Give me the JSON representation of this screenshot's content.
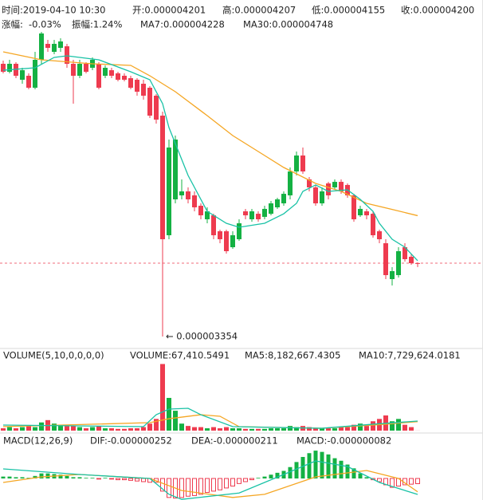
{
  "chart_data": {
    "type": "candlestick",
    "colors": {
      "up": "#14b143",
      "down": "#ee3b4f",
      "ma_fast": "#19c2a6",
      "ma_slow": "#f5a623",
      "macd": "#d83ad1"
    },
    "header": {
      "time": "时间:2019-04-10 10:30",
      "open": "开:0.000004201",
      "high": "高:0.000004207",
      "low": "低:0.000004155",
      "close": "收:0.000004200",
      "change_label": "涨幅:",
      "change": "-0.03%",
      "amplitude": "振幅:1.24%",
      "ma7": "MA7:0.000004228",
      "ma30": "MA30:0.000004748"
    },
    "price": {
      "ylim": [
        3.234e-06,
        6.868e-06
      ],
      "annotation": "← 0.000003354",
      "open": [
        6.5e-06,
        6.408e-06,
        6.5e-06,
        6.316e-06,
        6.362e-06,
        6.224e-06,
        6.546e-06,
        6.73e-06,
        6.638e-06,
        6.684e-06,
        6.702e-06,
        6.5e-06,
        6.362e-06,
        6.5e-06,
        6.454e-06,
        6.5e-06,
        6.362e-06,
        6.426e-06,
        6.39e-06,
        6.362e-06,
        6.334e-06,
        6.316e-06,
        6.27e-06,
        6.224e-06,
        6.132e-06,
        5.902e-06,
        4.522e-06,
        4.936e-06,
        4.982e-06,
        5.028e-06,
        4.982e-06,
        4.862e-06,
        4.706e-06,
        4.752e-06,
        4.568e-06,
        4.568e-06,
        4.384e-06,
        4.476e-06,
        4.798e-06,
        4.706e-06,
        4.77e-06,
        4.734e-06,
        4.77e-06,
        4.844e-06,
        4.89e-06,
        4.982e-06,
        5.258e-06,
        5.442e-06,
        5.166e-06,
        5.074e-06,
        4.89e-06,
        5.12e-06,
        5.074e-06,
        5.138e-06,
        5.102e-06,
        4.982e-06,
        4.752e-06,
        4.798e-06,
        4.77e-06,
        4.568e-06,
        4.43e-06,
        4.016e-06,
        4.062e-06,
        4.384e-06,
        4.274e-06,
        4.201e-06
      ],
      "high": [
        6.537e-06,
        6.546e-06,
        6.518e-06,
        6.454e-06,
        6.39e-06,
        6.638e-06,
        6.868e-06,
        6.776e-06,
        6.776e-06,
        6.794e-06,
        6.73e-06,
        6.546e-06,
        6.546e-06,
        6.518e-06,
        6.574e-06,
        6.518e-06,
        6.482e-06,
        6.454e-06,
        6.408e-06,
        6.39e-06,
        6.362e-06,
        6.334e-06,
        6.316e-06,
        6.242e-06,
        6.15e-06,
        5.948e-06,
        5.626e-06,
        5.672e-06,
        5.166e-06,
        5.074e-06,
        5.028e-06,
        4.89e-06,
        4.844e-06,
        4.77e-06,
        4.586e-06,
        4.586e-06,
        4.568e-06,
        4.706e-06,
        4.826e-06,
        4.826e-06,
        4.798e-06,
        4.862e-06,
        4.918e-06,
        4.954e-06,
        5.028e-06,
        5.304e-06,
        5.488e-06,
        5.534e-06,
        5.194e-06,
        5.102e-06,
        5.074e-06,
        5.138e-06,
        5.166e-06,
        5.166e-06,
        5.12e-06,
        5e-06,
        4.862e-06,
        4.826e-06,
        4.798e-06,
        4.586e-06,
        4.476e-06,
        4.154e-06,
        4.384e-06,
        4.43e-06,
        4.31e-06,
        4.207e-06
      ],
      "low": [
        6.39e-06,
        6.39e-06,
        6.334e-06,
        6.27e-06,
        6.206e-06,
        6.206e-06,
        6.5e-06,
        6.638e-06,
        6.61e-06,
        6.638e-06,
        6.454e-06,
        6.04e-06,
        6.334e-06,
        6.39e-06,
        6.426e-06,
        6.206e-06,
        6.334e-06,
        6.334e-06,
        6.298e-06,
        6.298e-06,
        6.206e-06,
        6.132e-06,
        6.086e-06,
        5.874e-06,
        5.81e-06,
        3.354e-06,
        4.476e-06,
        4.89e-06,
        4.936e-06,
        4.89e-06,
        4.798e-06,
        4.706e-06,
        4.66e-06,
        4.476e-06,
        4.43e-06,
        4.31e-06,
        4.366e-06,
        4.458e-06,
        4.706e-06,
        4.678e-06,
        4.678e-06,
        4.706e-06,
        4.752e-06,
        4.826e-06,
        4.862e-06,
        4.936e-06,
        5.212e-06,
        5.23e-06,
        5.028e-06,
        4.862e-06,
        4.862e-06,
        4.936e-06,
        5.046e-06,
        5e-06,
        4.954e-06,
        4.678e-06,
        4.734e-06,
        4.706e-06,
        4.494e-06,
        4.43e-06,
        4.016e-06,
        3.942e-06,
        4.034e-06,
        4.218e-06,
        4.182e-06,
        4.155e-06
      ],
      "close": [
        6.408e-06,
        6.5e-06,
        6.362e-06,
        6.426e-06,
        6.224e-06,
        6.546e-06,
        6.85e-06,
        6.684e-06,
        6.73e-06,
        6.758e-06,
        6.5e-06,
        6.362e-06,
        6.5e-06,
        6.408e-06,
        6.546e-06,
        6.224e-06,
        6.454e-06,
        6.362e-06,
        6.316e-06,
        6.316e-06,
        6.224e-06,
        6.178e-06,
        6.132e-06,
        5.902e-06,
        5.856e-06,
        4.476e-06,
        5.534e-06,
        5.626e-06,
        5.028e-06,
        4.936e-06,
        4.844e-06,
        4.752e-06,
        4.798e-06,
        4.522e-06,
        4.476e-06,
        4.338e-06,
        4.522e-06,
        4.66e-06,
        4.752e-06,
        4.798e-06,
        4.706e-06,
        4.826e-06,
        4.89e-06,
        4.936e-06,
        5e-06,
        5.258e-06,
        5.442e-06,
        5.258e-06,
        5.074e-06,
        4.89e-06,
        5.028e-06,
        4.982e-06,
        5.138e-06,
        5.028e-06,
        4.982e-06,
        4.706e-06,
        4.826e-06,
        4.752e-06,
        4.522e-06,
        4.476e-06,
        4.062e-06,
        4.108e-06,
        4.338e-06,
        4.246e-06,
        4.2e-06,
        4.2e-06
      ],
      "ma7": {
        "x": [
          0,
          5,
          8,
          10,
          15,
          20,
          23,
          25,
          26,
          27,
          29,
          32,
          35,
          37,
          41,
          44,
          46,
          47,
          49,
          51,
          54,
          56,
          58,
          59,
          61,
          63,
          65
        ],
        "values": [
          6.426e-06,
          6.454e-06,
          6.574e-06,
          6.592e-06,
          6.546e-06,
          6.408e-06,
          6.316e-06,
          6.04e-06,
          5.764e-06,
          5.58e-06,
          5.212e-06,
          4.798e-06,
          4.66e-06,
          4.614e-06,
          4.66e-06,
          4.77e-06,
          4.89e-06,
          5.028e-06,
          5.102e-06,
          5.028e-06,
          5.046e-06,
          4.936e-06,
          4.798e-06,
          4.66e-06,
          4.476e-06,
          4.384e-06,
          4.228e-06
        ]
      },
      "ma30": {
        "x": [
          0,
          6,
          14,
          20,
          23,
          27,
          32,
          36,
          41,
          44,
          49,
          53,
          57,
          61,
          65
        ],
        "values": [
          6.638e-06,
          6.546e-06,
          6.5e-06,
          6.482e-06,
          6.362e-06,
          6.178e-06,
          5.902e-06,
          5.672e-06,
          5.442e-06,
          5.304e-06,
          5.12e-06,
          5.028e-06,
          4.89e-06,
          4.82e-06,
          4.748e-06
        ]
      }
    },
    "volume": {
      "title": "VOLUME(5,10,0,0,0,0)",
      "current": "VOLUME:67,410.5491",
      "ma5_label": "MA5:8,182,667.4305",
      "ma10_label": "MA10:7,729,624.0181",
      "ylim": [
        0,
        58000000
      ],
      "values": [
        2000000,
        3000000,
        2000000,
        3000000,
        4000000,
        3000000,
        7000000,
        9000000,
        6000000,
        5000000,
        4000000,
        4000000,
        3000000,
        2000000,
        3000000,
        4000000,
        2000000,
        2000000,
        1500000,
        1500000,
        2000000,
        2000000,
        3000000,
        6000000,
        10000000,
        57000000,
        28000000,
        17000000,
        6000000,
        4000000,
        3000000,
        3000000,
        2000000,
        3000000,
        2000000,
        3000000,
        2000000,
        2000000,
        1500000,
        1500000,
        1500000,
        1500000,
        2000000,
        2000000,
        2000000,
        4000000,
        3000000,
        4000000,
        3000000,
        2000000,
        2000000,
        2000000,
        2000000,
        3000000,
        3000000,
        5000000,
        6000000,
        4000000,
        8000000,
        10000000,
        13000000,
        8000000,
        10000000,
        5000000,
        3000000,
        67410.5491
      ],
      "ma5": {
        "x": [
          0,
          22,
          24,
          26,
          29,
          31,
          36,
          50,
          58,
          65
        ],
        "values": [
          4800000,
          3400000,
          13600000,
          18400000,
          19100000,
          13600000,
          3400000,
          2000000,
          5500000,
          8182667.4305
        ]
      },
      "ma10": {
        "x": [
          0,
          23,
          26,
          31,
          34,
          37,
          50,
          60,
          65
        ],
        "values": [
          3400000,
          6800000,
          10200000,
          13600000,
          12300000,
          3400000,
          2000000,
          5500000,
          7729624.0181
        ]
      }
    },
    "macd": {
      "title": "MACD(12,26,9)",
      "dif_label": "DIF:-0.000000252",
      "dea_label": "DEA:-0.000000211",
      "macd_label": "MACD:-0.000000082",
      "ylim": [
        -3.4e-07,
        5.04e-07
      ],
      "values": [
        3e-08,
        3e-08,
        2e-08,
        2e-08,
        1e-08,
        4e-08,
        8e-08,
        8e-08,
        7e-08,
        6e-08,
        4e-08,
        2e-08,
        2e-08,
        1e-08,
        1e-08,
        -1e-08,
        1e-08,
        -1e-08,
        -2e-08,
        -2e-08,
        -3e-08,
        -4e-08,
        -5e-08,
        -6e-08,
        -6e-08,
        -2e-07,
        -3e-07,
        -3.1e-07,
        -3e-07,
        -2.8e-07,
        -2.7e-07,
        -2.5e-07,
        -2.2e-07,
        -2e-07,
        -1.8e-07,
        -1.5e-07,
        -1.2e-07,
        -8e-08,
        -5e-08,
        -2e-08,
        1e-08,
        3e-08,
        6e-08,
        9e-08,
        1.2e-07,
        1.8e-07,
        2.6e-07,
        3.4e-07,
        4e-07,
        4.4e-07,
        4.2e-07,
        3.8e-07,
        3.2e-07,
        2.8e-07,
        2.2e-07,
        1.6e-07,
        8e-08,
        2e-08,
        -2e-08,
        -5e-08,
        -1e-07,
        -1.4e-07,
        -1.2e-07,
        -1e-07,
        -9e-08,
        -8.2e-08
      ],
      "dif": {
        "x": [
          0,
          12,
          23,
          26,
          28,
          37,
          44,
          49,
          54,
          59,
          65
        ],
        "values": [
          1.51e-07,
          6.3e-08,
          0,
          -2.5e-07,
          -3.3e-07,
          -2.3e-07,
          6.3e-08,
          2.77e-07,
          1.89e-07,
          -6.3e-08,
          -2.52e-07
        ]
      },
      "dea": {
        "x": [
          0,
          6,
          12,
          23,
          28,
          36,
          41,
          49,
          57,
          62,
          65
        ],
        "values": [
          -6.3e-08,
          2.5e-08,
          6.3e-08,
          0,
          -1.9e-07,
          -3e-07,
          -2.5e-07,
          2.5e-08,
          1.26e-07,
          0,
          -2.11e-07
        ]
      }
    }
  }
}
